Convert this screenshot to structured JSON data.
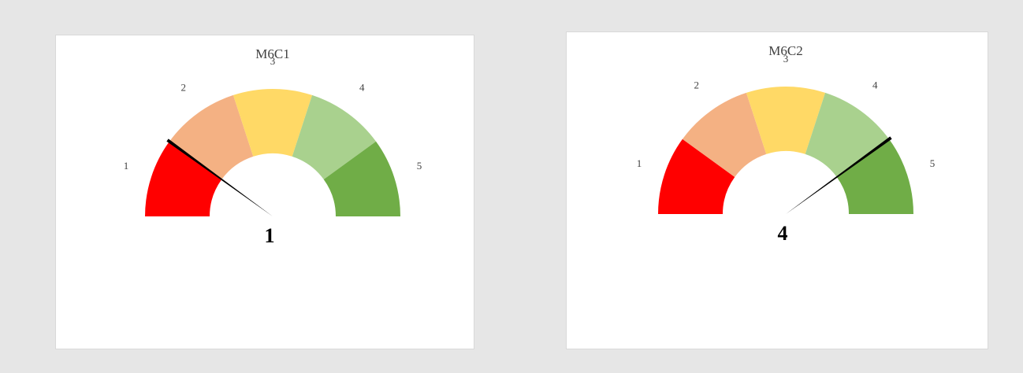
{
  "chart_data": [
    {
      "type": "gauge",
      "title": "M6C1",
      "categories": [
        "1",
        "2",
        "3",
        "4",
        "5"
      ],
      "colors": [
        "#ff0000",
        "#f4b183",
        "#ffd966",
        "#a9d18e",
        "#70ad47"
      ],
      "value": 1,
      "ylim": [
        0,
        5
      ]
    },
    {
      "type": "gauge",
      "title": "M6C2",
      "categories": [
        "1",
        "2",
        "3",
        "4",
        "5"
      ],
      "colors": [
        "#ff0000",
        "#f4b183",
        "#ffd966",
        "#a9d18e",
        "#70ad47"
      ],
      "value": 4,
      "ylim": [
        0,
        5
      ]
    }
  ]
}
